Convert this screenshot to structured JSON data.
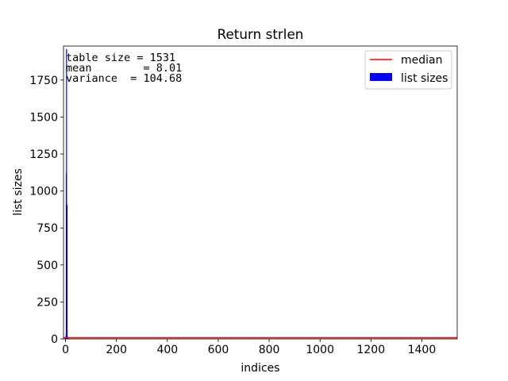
{
  "chart_data": {
    "type": "bar",
    "title": "Return strlen",
    "xlabel": "indices",
    "ylabel": "list sizes",
    "xlim": [
      -8,
      1539
    ],
    "ylim": [
      0,
      1980
    ],
    "x_ticks": [
      0,
      200,
      400,
      600,
      800,
      1000,
      1200,
      1400
    ],
    "y_ticks": [
      0,
      250,
      500,
      750,
      1000,
      1250,
      1500,
      1750
    ],
    "series": [
      {
        "name": "list sizes",
        "color": "#0000ff",
        "x": [
          0,
          1,
          2,
          3,
          4,
          5,
          6,
          7,
          8,
          9,
          10,
          11
        ],
        "values": [
          2,
          12,
          25,
          1120,
          1960,
          30,
          905,
          20,
          10,
          6,
          4,
          3
        ]
      },
      {
        "name": "median",
        "type": "line",
        "color": "#ff0000",
        "y": 8
      }
    ],
    "annotations": [
      "table size = 1531",
      "mean        = 8.01",
      "variance  = 104.68"
    ],
    "legend": {
      "placement": "top-right",
      "entries": [
        "median",
        "list sizes"
      ]
    },
    "grid": false
  }
}
